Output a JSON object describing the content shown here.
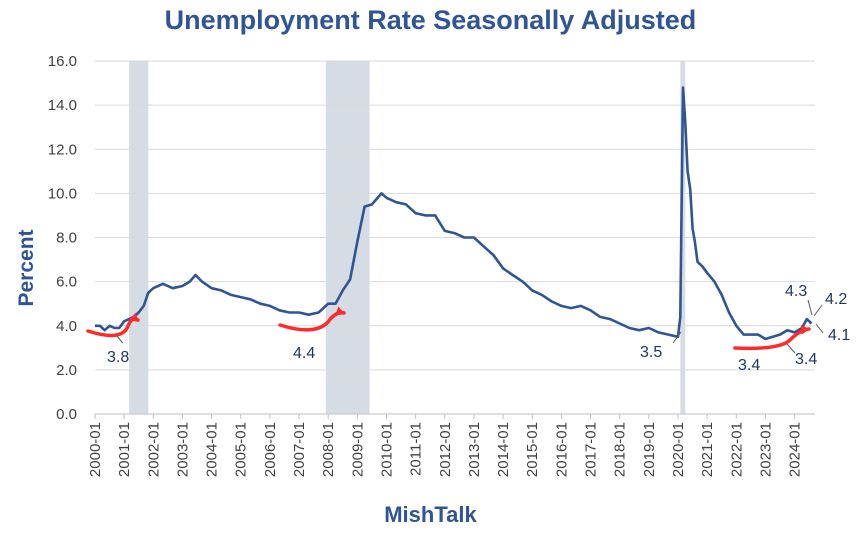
{
  "chart_data": {
    "type": "line",
    "title": "Unemployment Rate Seasonally Adjusted",
    "ylabel": "Percent",
    "xlabel": "",
    "watermark": "MishTalk",
    "ylim": [
      0,
      16
    ],
    "y_ticks": [
      "0.0",
      "2.0",
      "4.0",
      "6.0",
      "8.0",
      "10.0",
      "12.0",
      "14.0",
      "16.0"
    ],
    "x_range": [
      2000,
      2024.7
    ],
    "x_tick_labels": [
      "2000-01",
      "2001-01",
      "2002-01",
      "2003-01",
      "2004-01",
      "2005-01",
      "2006-01",
      "2007-01",
      "2008-01",
      "2009-01",
      "2010-01",
      "2011-01",
      "2012-01",
      "2013-01",
      "2014-01",
      "2015-01",
      "2016-01",
      "2017-01",
      "2018-01",
      "2019-01",
      "2020-01",
      "2021-01",
      "2022-01",
      "2023-01",
      "2024-01"
    ],
    "recessions": [
      {
        "start": 2001.17,
        "end": 2001.83
      },
      {
        "start": 2007.92,
        "end": 2009.42
      },
      {
        "start": 2020.08,
        "end": 2020.25
      }
    ],
    "grid": true,
    "colors": {
      "line": "#2f5597",
      "recession": "#d6dce4",
      "arrow": "#ff2b2b",
      "title": "#2f5597",
      "grid": "#d9d9d9"
    },
    "series": [
      {
        "name": "Unemployment Rate",
        "x": [
          2000.0,
          2000.17,
          2000.33,
          2000.5,
          2000.67,
          2000.83,
          2001.0,
          2001.17,
          2001.33,
          2001.5,
          2001.67,
          2001.83,
          2002.0,
          2002.33,
          2002.67,
          2003.0,
          2003.25,
          2003.45,
          2003.67,
          2004.0,
          2004.33,
          2004.67,
          2005.0,
          2005.33,
          2005.67,
          2006.0,
          2006.33,
          2006.67,
          2007.0,
          2007.33,
          2007.67,
          2008.0,
          2008.25,
          2008.5,
          2008.75,
          2009.0,
          2009.25,
          2009.5,
          2009.83,
          2010.0,
          2010.33,
          2010.67,
          2011.0,
          2011.33,
          2011.67,
          2012.0,
          2012.33,
          2012.67,
          2013.0,
          2013.33,
          2013.67,
          2014.0,
          2014.33,
          2014.67,
          2015.0,
          2015.33,
          2015.67,
          2016.0,
          2016.33,
          2016.67,
          2017.0,
          2017.33,
          2017.67,
          2018.0,
          2018.33,
          2018.67,
          2019.0,
          2019.33,
          2019.67,
          2020.0,
          2020.08,
          2020.17,
          2020.25,
          2020.33,
          2020.42,
          2020.5,
          2020.58,
          2020.67,
          2020.83,
          2021.0,
          2021.25,
          2021.5,
          2021.75,
          2022.0,
          2022.25,
          2022.5,
          2022.75,
          2023.0,
          2023.25,
          2023.5,
          2023.75,
          2024.0,
          2024.25,
          2024.42,
          2024.58
        ],
        "values": [
          4.0,
          4.0,
          3.8,
          4.0,
          3.9,
          3.9,
          4.2,
          4.3,
          4.4,
          4.6,
          4.9,
          5.5,
          5.7,
          5.9,
          5.7,
          5.8,
          6.0,
          6.3,
          6.0,
          5.7,
          5.6,
          5.4,
          5.3,
          5.2,
          5.0,
          4.9,
          4.7,
          4.6,
          4.6,
          4.5,
          4.6,
          5.0,
          5.0,
          5.6,
          6.1,
          7.8,
          9.4,
          9.5,
          10.0,
          9.8,
          9.6,
          9.5,
          9.1,
          9.0,
          9.0,
          8.3,
          8.2,
          8.0,
          8.0,
          7.6,
          7.2,
          6.6,
          6.3,
          6.0,
          5.6,
          5.4,
          5.1,
          4.9,
          4.8,
          4.9,
          4.7,
          4.4,
          4.3,
          4.1,
          3.9,
          3.8,
          3.9,
          3.7,
          3.6,
          3.5,
          4.4,
          14.8,
          13.2,
          11.0,
          10.2,
          8.4,
          7.8,
          6.9,
          6.7,
          6.4,
          6.0,
          5.4,
          4.6,
          4.0,
          3.6,
          3.6,
          3.6,
          3.4,
          3.5,
          3.6,
          3.8,
          3.7,
          3.9,
          4.3,
          4.1
        ]
      }
    ],
    "annotations": [
      {
        "text": "3.8",
        "x": 2000.75,
        "y": 3.8
      },
      {
        "text": "4.4",
        "x": 2007.1,
        "y": 4.3
      },
      {
        "text": "3.5",
        "x": 2019.75,
        "y": 3.4
      },
      {
        "text": "3.4",
        "x": 2022.62,
        "y": 3.2
      },
      {
        "text": "3.4",
        "x": 2023.62,
        "y": 3.4
      },
      {
        "text": "4.3",
        "x": 2024.1,
        "y": 4.2
      },
      {
        "text": "4.2",
        "x": 2024.6,
        "y": 4.3
      },
      {
        "text": "4.1",
        "x": 2024.58,
        "y": 4.1
      }
    ]
  }
}
